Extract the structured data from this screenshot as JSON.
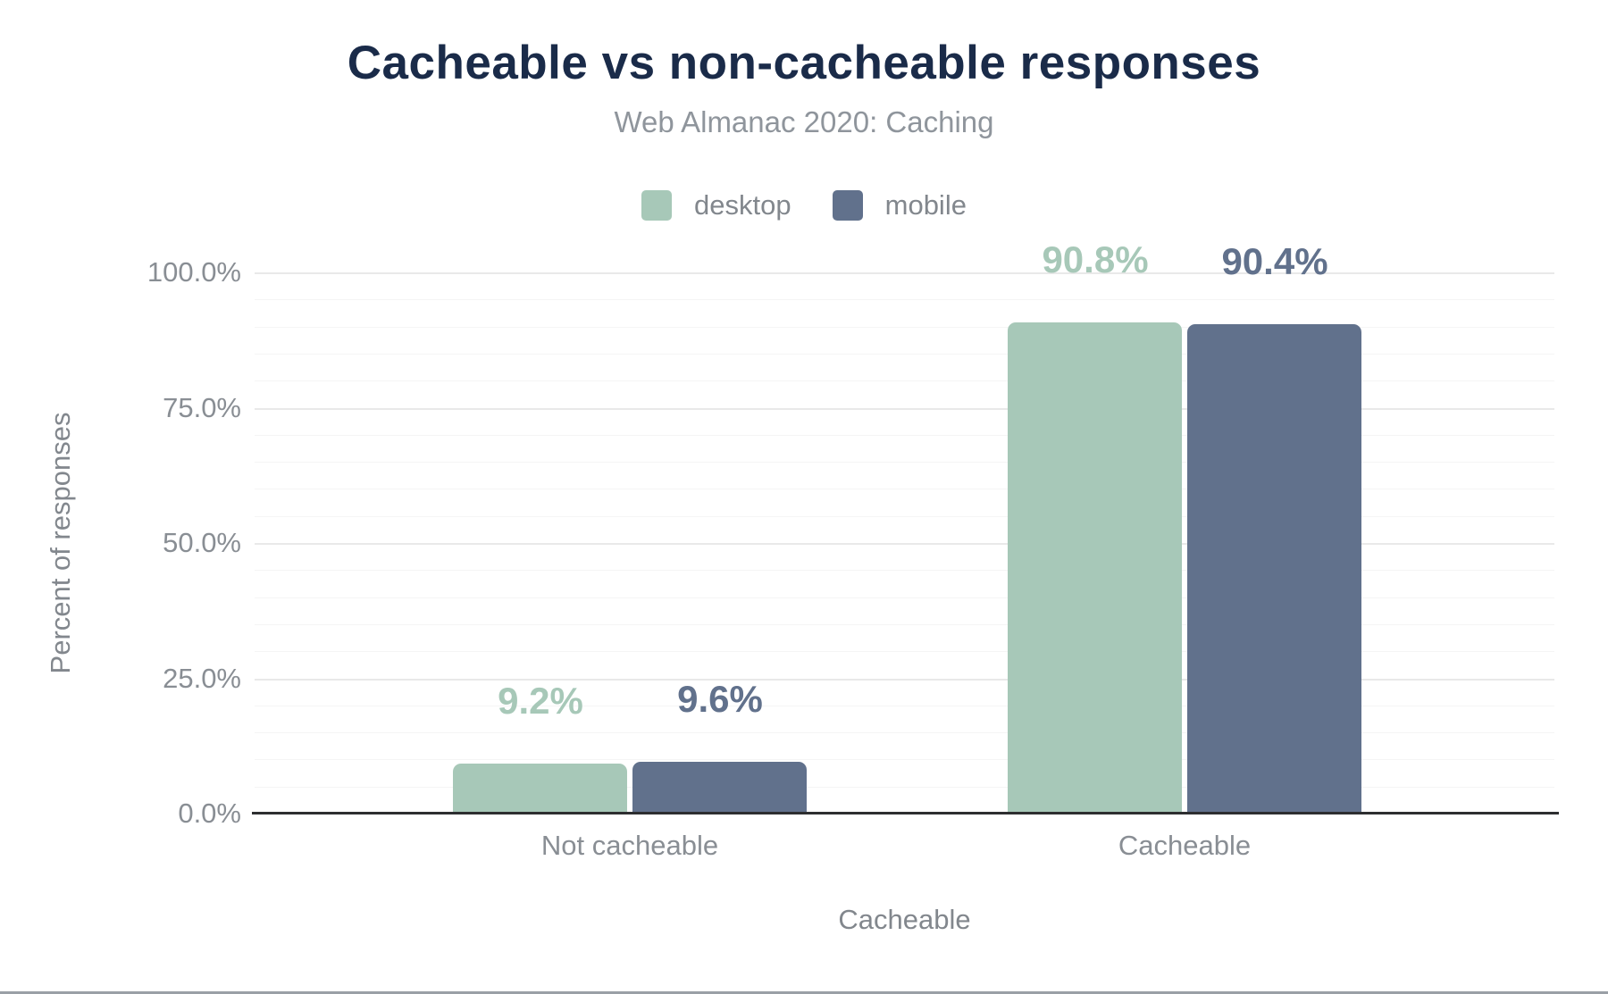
{
  "header": {
    "title": "Cacheable vs non-cacheable responses",
    "subtitle": "Web Almanac 2020: Caching"
  },
  "legend": [
    {
      "label": "desktop",
      "color": "#a7c8b8"
    },
    {
      "label": "mobile",
      "color": "#61718c"
    }
  ],
  "colors": {
    "title_text": "#1a2b49",
    "muted_text": "#8f959c",
    "axis_text": "#898e94",
    "desktop": "#a7c8b8",
    "mobile": "#61718c",
    "axis_line": "#2d2e30",
    "major_grid": "#e9e9e9",
    "minor_grid": "#f5f5f5",
    "page_bottom_border": "#9aa0a6"
  },
  "chart_data": {
    "type": "bar",
    "title": "Cacheable vs non-cacheable responses",
    "subtitle": "Web Almanac 2020: Caching",
    "categories": [
      "Not cacheable",
      "Cacheable"
    ],
    "series": [
      {
        "name": "desktop",
        "color": "#a7c8b8",
        "values": [
          9.2,
          90.8
        ],
        "data_labels": [
          "9.2%",
          "90.8%"
        ]
      },
      {
        "name": "mobile",
        "color": "#61718c",
        "values": [
          9.6,
          90.4
        ],
        "data_labels": [
          "9.6%",
          "90.4%"
        ]
      }
    ],
    "xlabel": "Cacheable",
    "ylabel": "Percent of responses",
    "ylim": [
      0,
      100
    ],
    "yticks": [
      0,
      25,
      50,
      75,
      100
    ],
    "ytick_labels": [
      "0.0%",
      "25.0%",
      "50.0%",
      "75.0%",
      "100.0%"
    ],
    "minor_grid_step": 5,
    "grid": true,
    "legend_position": "top",
    "value_suffix": "%"
  }
}
